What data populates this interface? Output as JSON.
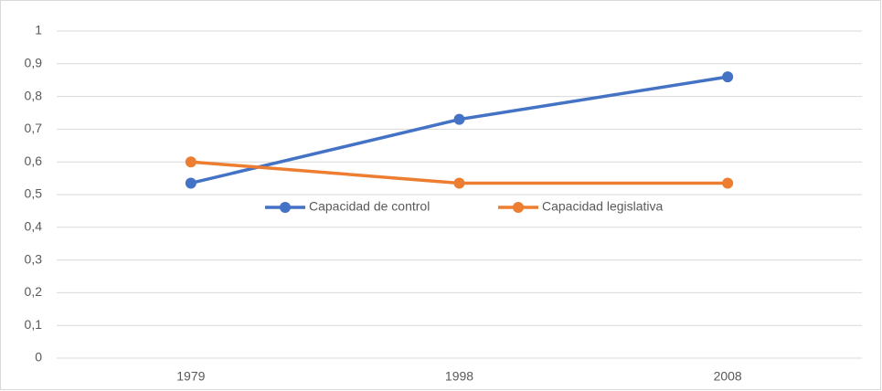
{
  "chart_data": {
    "type": "line",
    "categories": [
      "1979",
      "1998",
      "2008"
    ],
    "series": [
      {
        "name": "Capacidad de control",
        "color": "#4472c4",
        "values": [
          0.535,
          0.73,
          0.86
        ]
      },
      {
        "name": "Capacidad legislativa",
        "color": "#ed7d31",
        "values": [
          0.6,
          0.535,
          0.535
        ]
      }
    ],
    "ylim": [
      0,
      1
    ],
    "yticks": [
      0,
      {
        "value": 0.1,
        "label": "0,1"
      },
      {
        "value": 0.2,
        "label": "0,2"
      },
      {
        "value": 0.3,
        "label": "0,3"
      },
      {
        "value": 0.4,
        "label": "0,4"
      },
      {
        "value": 0.5,
        "label": "0,5"
      },
      {
        "value": 0.6,
        "label": "0,6"
      },
      {
        "value": 0.7,
        "label": "0,7"
      },
      {
        "value": 0.8,
        "label": "0,8"
      },
      {
        "value": 0.9,
        "label": "0,9"
      },
      1
    ],
    "grid": true,
    "legend_position": "center"
  }
}
